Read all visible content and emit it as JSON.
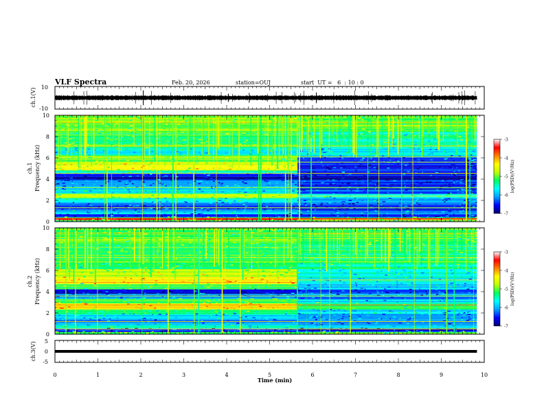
{
  "header": {
    "title": "VLF Spectra",
    "date": "Feb. 20, 2026",
    "station": "station=OUJ",
    "start": "start  UT =   6  : 10 : 0"
  },
  "chart_data": [
    {
      "type": "line",
      "panel": "ch1-waveform",
      "ylabel": "ch.1(V)",
      "ylim": [
        -10,
        10
      ],
      "yticks": [
        "10",
        "-10"
      ],
      "xlim": [
        0,
        10
      ],
      "level": 0,
      "color": "#000000"
    },
    {
      "type": "heatmap",
      "panel": "ch1-spectrogram",
      "ylabel_top": "ch.1",
      "ylabel": "Frequency (kHz)",
      "ylim": [
        0,
        10
      ],
      "yticks": [
        "0",
        "2",
        "4",
        "6",
        "8",
        "10"
      ],
      "xlim": [
        0,
        10
      ],
      "regime_change_min": 5.65,
      "colorbar": {
        "label": "log(PSD)(V²/Hz)",
        "range": [
          -7,
          -3
        ],
        "ticks": [
          "-3",
          "-4",
          "-5",
          "-6",
          "-7"
        ],
        "colors": [
          "#000070",
          "#0000ff",
          "#00a0ff",
          "#00ffff",
          "#00ff60",
          "#c0ff00",
          "#ffff00",
          "#ff8000",
          "#ff0000",
          "#ffffff"
        ]
      },
      "bands_before": [
        {
          "f": [
            0.0,
            0.25
          ],
          "level": 0.45
        },
        {
          "f": [
            0.25,
            0.35
          ],
          "level": 0.85
        },
        {
          "f": [
            0.35,
            0.5
          ],
          "level": 0.5
        },
        {
          "f": [
            0.5,
            0.8
          ],
          "level": 0.12
        },
        {
          "f": [
            0.8,
            1.1
          ],
          "level": 0.3
        },
        {
          "f": [
            1.1,
            1.6
          ],
          "level": 0.16
        },
        {
          "f": [
            1.6,
            1.9
          ],
          "level": 0.22
        },
        {
          "f": [
            1.9,
            2.3
          ],
          "level": 0.35
        },
        {
          "f": [
            2.3,
            2.7
          ],
          "level": 0.55
        },
        {
          "f": [
            2.7,
            3.1
          ],
          "level": 0.32
        },
        {
          "f": [
            3.1,
            3.6
          ],
          "level": 0.25
        },
        {
          "f": [
            3.6,
            4.0
          ],
          "level": 0.2
        },
        {
          "f": [
            4.0,
            4.25
          ],
          "level": 0.02
        },
        {
          "f": [
            4.25,
            4.6
          ],
          "level": 0.15
        },
        {
          "f": [
            4.6,
            4.9
          ],
          "level": 0.4
        },
        {
          "f": [
            4.9,
            5.6
          ],
          "level": 0.62
        },
        {
          "f": [
            5.6,
            6.3
          ],
          "level": 0.5
        },
        {
          "f": [
            6.3,
            7.0
          ],
          "level": 0.35
        },
        {
          "f": [
            7.0,
            8.5
          ],
          "level": 0.46
        },
        {
          "f": [
            8.5,
            10.0
          ],
          "level": 0.52
        }
      ],
      "bands_after": [
        {
          "f": [
            0.0,
            0.25
          ],
          "level": 0.45
        },
        {
          "f": [
            0.25,
            0.35
          ],
          "level": 0.8
        },
        {
          "f": [
            0.35,
            0.5
          ],
          "level": 0.45
        },
        {
          "f": [
            0.5,
            0.8
          ],
          "level": 0.1
        },
        {
          "f": [
            0.8,
            1.1
          ],
          "level": 0.25
        },
        {
          "f": [
            1.1,
            1.6
          ],
          "level": 0.12
        },
        {
          "f": [
            1.6,
            1.9
          ],
          "level": 0.15
        },
        {
          "f": [
            1.9,
            2.3
          ],
          "level": 0.25
        },
        {
          "f": [
            2.3,
            2.7
          ],
          "level": 0.35
        },
        {
          "f": [
            2.7,
            3.1
          ],
          "level": 0.15
        },
        {
          "f": [
            3.1,
            3.6
          ],
          "level": 0.12
        },
        {
          "f": [
            3.6,
            4.0
          ],
          "level": 0.12
        },
        {
          "f": [
            4.0,
            4.25
          ],
          "level": 0.02
        },
        {
          "f": [
            4.25,
            4.6
          ],
          "level": 0.1
        },
        {
          "f": [
            4.6,
            4.9
          ],
          "level": 0.15
        },
        {
          "f": [
            4.9,
            5.6
          ],
          "level": 0.12
        },
        {
          "f": [
            5.6,
            6.3
          ],
          "level": 0.2
        },
        {
          "f": [
            6.3,
            7.0
          ],
          "level": 0.32
        },
        {
          "f": [
            7.0,
            8.5
          ],
          "level": 0.4
        },
        {
          "f": [
            8.5,
            10.0
          ],
          "level": 0.5
        }
      ],
      "lines": [
        {
          "f": 0.3,
          "level": 0.88
        },
        {
          "f": 1.3,
          "level": 0.6
        },
        {
          "f": 2.4,
          "level": 0.62
        },
        {
          "f": 3.2,
          "level": 0.55
        },
        {
          "f": 4.55,
          "level": 0.62
        },
        {
          "f": 5.6,
          "level": 0.6
        },
        {
          "f": 6.1,
          "level": 0.58
        },
        {
          "f": 7.1,
          "level": 0.7
        },
        {
          "f": 9.3,
          "level": 0.72
        }
      ]
    },
    {
      "type": "heatmap",
      "panel": "ch2-spectrogram",
      "ylabel_top": "ch.2",
      "ylabel": "Frequency (kHz)",
      "ylim": [
        0,
        10
      ],
      "yticks": [
        "0",
        "2",
        "4",
        "6",
        "8",
        "10"
      ],
      "xlim": [
        0,
        10
      ],
      "regime_change_min": 5.65,
      "colorbar": {
        "label": "log(PSD)(V²/Hz)",
        "range": [
          -7,
          -3
        ],
        "ticks": [
          "-3",
          "-4",
          "-5",
          "-6",
          "-7"
        ],
        "colors": [
          "#000070",
          "#0000ff",
          "#00a0ff",
          "#00ffff",
          "#00ff60",
          "#c0ff00",
          "#ffff00",
          "#ff8000",
          "#ff0000",
          "#ffffff"
        ]
      },
      "bands_before": [
        {
          "f": [
            0.0,
            0.3
          ],
          "level": 0.5
        },
        {
          "f": [
            0.3,
            0.6
          ],
          "level": 0.12
        },
        {
          "f": [
            0.6,
            1.0
          ],
          "level": 0.35
        },
        {
          "f": [
            1.0,
            1.5
          ],
          "level": 0.22
        },
        {
          "f": [
            1.5,
            2.0
          ],
          "level": 0.3
        },
        {
          "f": [
            2.0,
            2.4
          ],
          "level": 0.42
        },
        {
          "f": [
            2.4,
            3.0
          ],
          "level": 0.68
        },
        {
          "f": [
            3.0,
            3.4
          ],
          "level": 0.45
        },
        {
          "f": [
            3.4,
            3.9
          ],
          "level": 0.25
        },
        {
          "f": [
            3.9,
            4.3
          ],
          "level": 0.1
        },
        {
          "f": [
            4.3,
            4.8
          ],
          "level": 0.45
        },
        {
          "f": [
            4.8,
            5.4
          ],
          "level": 0.7
        },
        {
          "f": [
            5.4,
            6.2
          ],
          "level": 0.58
        },
        {
          "f": [
            6.2,
            7.0
          ],
          "level": 0.42
        },
        {
          "f": [
            7.0,
            8.5
          ],
          "level": 0.46
        },
        {
          "f": [
            8.5,
            10.0
          ],
          "level": 0.5
        }
      ],
      "bands_after": [
        {
          "f": [
            0.0,
            0.3
          ],
          "level": 0.5
        },
        {
          "f": [
            0.3,
            0.6
          ],
          "level": 0.1
        },
        {
          "f": [
            0.6,
            1.0
          ],
          "level": 0.3
        },
        {
          "f": [
            1.0,
            1.5
          ],
          "level": 0.2
        },
        {
          "f": [
            1.5,
            2.0
          ],
          "level": 0.25
        },
        {
          "f": [
            2.0,
            2.4
          ],
          "level": 0.3
        },
        {
          "f": [
            2.4,
            3.0
          ],
          "level": 0.42
        },
        {
          "f": [
            3.0,
            3.4
          ],
          "level": 0.3
        },
        {
          "f": [
            3.4,
            3.9
          ],
          "level": 0.22
        },
        {
          "f": [
            3.9,
            4.3
          ],
          "level": 0.12
        },
        {
          "f": [
            4.3,
            4.8
          ],
          "level": 0.3
        },
        {
          "f": [
            4.8,
            5.4
          ],
          "level": 0.32
        },
        {
          "f": [
            5.4,
            6.2
          ],
          "level": 0.35
        },
        {
          "f": [
            6.2,
            7.0
          ],
          "level": 0.4
        },
        {
          "f": [
            7.0,
            8.5
          ],
          "level": 0.42
        },
        {
          "f": [
            8.5,
            10.0
          ],
          "level": 0.48
        }
      ],
      "lines": [
        {
          "f": 0.5,
          "level": 0.7
        },
        {
          "f": 1.2,
          "level": 0.62
        },
        {
          "f": 2.75,
          "level": 0.8
        },
        {
          "f": 3.6,
          "level": 0.55
        },
        {
          "f": 5.1,
          "level": 0.72
        },
        {
          "f": 6.8,
          "level": 0.6
        },
        {
          "f": 7.2,
          "level": 0.68
        },
        {
          "f": 9.5,
          "level": 0.72
        }
      ]
    },
    {
      "type": "line",
      "panel": "ch3-waveform",
      "ylabel": "ch.3(V)",
      "ylim": [
        -5,
        5
      ],
      "yticks": [
        "5",
        "0",
        "-5"
      ],
      "xlim": [
        0,
        10
      ],
      "level": 0,
      "color": "#000000"
    }
  ],
  "xaxis": {
    "label": "Time (min)",
    "range": [
      0,
      10
    ],
    "ticks": [
      "0",
      "1",
      "2",
      "3",
      "4",
      "5",
      "6",
      "7",
      "8",
      "9",
      "10"
    ],
    "data_end_min": 9.83
  }
}
